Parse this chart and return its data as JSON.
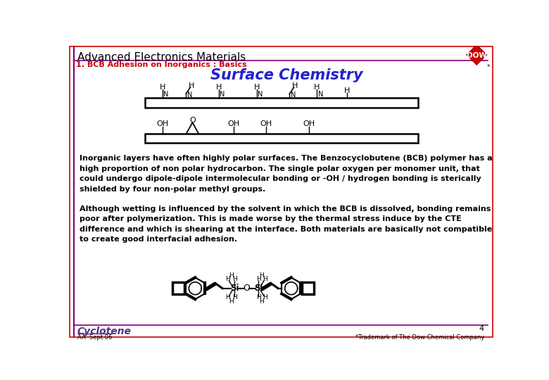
{
  "title_main": "Advanced Electronics Materials",
  "title_sub": "1. BCB Adhesion on Inorganics : Basics",
  "title_center": "Surface Chemistry",
  "bg_color": "#ffffff",
  "border_color": "#cc0000",
  "header_line_color": "#800080",
  "sub_title_color": "#cc0000",
  "center_title_color": "#2222cc",
  "body_text1": "Inorganic layers have often highly polar surfaces. The Benzocyclobutene (BCB) polymer has a\nhigh proportion of non polar hydrocarbon. The single polar oxygen per monomer unit, that\ncould undergo dipole-dipole intermolecular bonding or -OH / hydrogen bonding is sterically\nshielded by four non-polar methyl groups.",
  "body_text2": "Although wetting is influenced by the solvent in which the BCB is dissolved, bonding remains\npoor after polymerization. This is made worse by the thermal stress induce by the CTE\ndifference and which is shearing at the interface. Both materials are basically not compatible\nto create good interfacial adhesion.",
  "footer_left": "AA  Sept 06",
  "footer_right": "*Trademark of The Dow Chemical Company",
  "page_number": "4",
  "dow_color": "#cc0000"
}
